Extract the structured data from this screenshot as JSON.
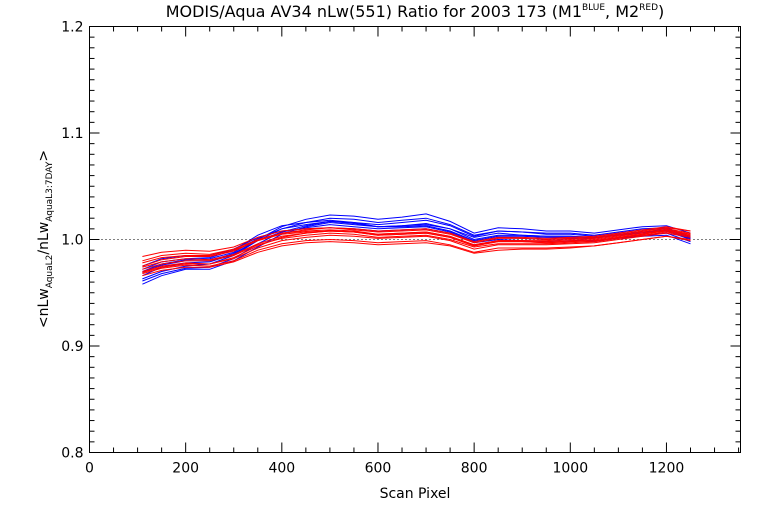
{
  "chart_data": {
    "type": "line",
    "title": {
      "main": "MODIS/Aqua AV34 nLw(551) Ratio for 2003 173 (M1",
      "sup1": "BLUE",
      "mid": ", M2",
      "sup2": "RED",
      "end": ")"
    },
    "xlabel": "Scan Pixel",
    "ylabel": {
      "open": "<nLw",
      "sub1": "AquaL2",
      "slash": "/nLw",
      "sub2": "AquaL3:7DAY",
      "close": ">"
    },
    "xlim": [
      0,
      1354
    ],
    "ylim": [
      0.8,
      1.2
    ],
    "xticks": [
      0,
      200,
      400,
      600,
      800,
      1000,
      1200
    ],
    "xtick_labels": [
      "0",
      "200",
      "400",
      "600",
      "800",
      "1000",
      "1200"
    ],
    "yticks": [
      0.8,
      0.9,
      1.0,
      1.1,
      1.2
    ],
    "ytick_labels": [
      "0.8",
      "0.9",
      "1.0",
      "1.1",
      "1.2"
    ],
    "reference_line": 1.0,
    "grid": false,
    "colors": {
      "M1": "#0000ff",
      "M2": "#ff0000",
      "reference": "#000000"
    },
    "x": [
      110,
      150,
      200,
      250,
      300,
      350,
      400,
      450,
      500,
      550,
      600,
      650,
      700,
      750,
      800,
      850,
      900,
      950,
      1000,
      1050,
      1100,
      1150,
      1200,
      1250
    ],
    "series": [
      {
        "group": "M1",
        "values": [
          0.958,
          0.966,
          0.972,
          0.972,
          0.98,
          0.993,
          1.005,
          1.012,
          1.016,
          1.014,
          1.012,
          1.013,
          1.014,
          1.01,
          1.002,
          1.006,
          1.004,
          1.003,
          1.003,
          1.002,
          1.004,
          1.007,
          1.009,
          1.001
        ]
      },
      {
        "group": "M1",
        "values": [
          0.966,
          0.974,
          0.978,
          0.979,
          0.986,
          1.0,
          1.012,
          1.019,
          1.023,
          1.022,
          1.019,
          1.021,
          1.024,
          1.017,
          1.006,
          1.011,
          1.01,
          1.008,
          1.008,
          1.006,
          1.009,
          1.012,
          1.013,
          1.006
        ]
      },
      {
        "group": "M1",
        "values": [
          0.972,
          0.979,
          0.982,
          0.983,
          0.99,
          1.004,
          1.013,
          1.016,
          1.018,
          1.016,
          1.012,
          1.012,
          1.013,
          1.008,
          0.999,
          1.003,
          1.003,
          1.002,
          1.002,
          1.001,
          1.004,
          1.006,
          1.008,
          1.001
        ]
      },
      {
        "group": "M1",
        "values": [
          0.961,
          0.968,
          0.973,
          0.974,
          0.982,
          0.996,
          1.007,
          1.013,
          1.017,
          1.016,
          1.014,
          1.016,
          1.018,
          1.013,
          1.003,
          1.008,
          1.007,
          1.005,
          1.005,
          1.003,
          1.006,
          1.009,
          1.01,
          1.002
        ]
      },
      {
        "group": "M1",
        "values": [
          0.975,
          0.982,
          0.985,
          0.985,
          0.991,
          1.002,
          1.008,
          1.01,
          1.011,
          1.01,
          1.008,
          1.009,
          1.01,
          1.006,
          0.997,
          1.0,
          0.999,
          0.998,
          0.999,
          0.998,
          1.001,
          1.003,
          1.004,
          0.996
        ]
      },
      {
        "group": "M1",
        "values": [
          0.963,
          0.97,
          0.975,
          0.977,
          0.985,
          0.999,
          1.01,
          1.016,
          1.02,
          1.019,
          1.016,
          1.018,
          1.02,
          1.014,
          1.004,
          1.008,
          1.007,
          1.006,
          1.006,
          1.004,
          1.007,
          1.01,
          1.011,
          1.003
        ]
      },
      {
        "group": "M1",
        "values": [
          0.969,
          0.976,
          0.98,
          0.98,
          0.987,
          0.999,
          1.007,
          1.011,
          1.014,
          1.012,
          1.01,
          1.011,
          1.012,
          1.007,
          0.998,
          1.002,
          1.001,
          1.0,
          1.001,
          0.999,
          1.002,
          1.004,
          1.006,
          0.998
        ]
      },
      {
        "group": "M1",
        "values": [
          0.97,
          0.977,
          0.981,
          0.982,
          0.988,
          1.001,
          1.01,
          1.014,
          1.017,
          1.015,
          1.012,
          1.013,
          1.015,
          1.01,
          1.0,
          1.004,
          1.004,
          1.003,
          1.003,
          1.002,
          1.005,
          1.007,
          1.008,
          1.0
        ]
      },
      {
        "group": "M2",
        "values": [
          0.97,
          0.975,
          0.978,
          0.977,
          0.983,
          0.994,
          1.002,
          1.006,
          1.008,
          1.007,
          1.004,
          1.005,
          1.006,
          1.002,
          0.994,
          0.998,
          0.998,
          0.997,
          0.998,
          0.999,
          1.002,
          1.005,
          1.009,
          1.005
        ]
      },
      {
        "group": "M2",
        "values": [
          0.975,
          0.981,
          0.984,
          0.984,
          0.989,
          0.999,
          1.006,
          1.009,
          1.011,
          1.009,
          1.007,
          1.008,
          1.009,
          1.005,
          0.997,
          1.001,
          1.001,
          1.0,
          1.001,
          1.002,
          1.005,
          1.008,
          1.011,
          1.008
        ]
      },
      {
        "group": "M2",
        "values": [
          0.968,
          0.973,
          0.976,
          0.975,
          0.98,
          0.99,
          0.996,
          0.999,
          1.0,
          0.999,
          0.997,
          0.998,
          0.999,
          0.995,
          0.988,
          0.992,
          0.992,
          0.992,
          0.993,
          0.994,
          0.997,
          1.0,
          1.003,
          1.0
        ]
      },
      {
        "group": "M2",
        "values": [
          0.98,
          0.985,
          0.987,
          0.986,
          0.991,
          1.0,
          1.006,
          1.008,
          1.009,
          1.008,
          1.005,
          1.006,
          1.007,
          1.003,
          0.995,
          0.999,
          0.999,
          0.999,
          1.0,
          1.001,
          1.004,
          1.007,
          1.01,
          1.006
        ]
      },
      {
        "group": "M2",
        "values": [
          0.972,
          0.977,
          0.98,
          0.98,
          0.985,
          0.995,
          1.001,
          1.004,
          1.006,
          1.005,
          1.002,
          1.003,
          1.004,
          1.0,
          0.993,
          0.996,
          0.996,
          0.996,
          0.997,
          0.998,
          1.001,
          1.004,
          1.007,
          1.003
        ]
      },
      {
        "group": "M2",
        "values": [
          0.966,
          0.971,
          0.974,
          0.974,
          0.979,
          0.988,
          0.994,
          0.997,
          0.998,
          0.997,
          0.995,
          0.996,
          0.997,
          0.994,
          0.987,
          0.99,
          0.991,
          0.991,
          0.992,
          0.994,
          0.997,
          1.0,
          1.003,
          0.999
        ]
      },
      {
        "group": "M2",
        "values": [
          0.984,
          0.988,
          0.99,
          0.989,
          0.993,
          1.002,
          1.008,
          1.01,
          1.011,
          1.01,
          1.008,
          1.009,
          1.01,
          1.006,
          0.998,
          1.002,
          1.002,
          1.001,
          1.002,
          1.003,
          1.006,
          1.009,
          1.012,
          1.008
        ]
      },
      {
        "group": "M2",
        "values": [
          0.974,
          0.979,
          0.982,
          0.981,
          0.986,
          0.996,
          1.003,
          1.006,
          1.008,
          1.007,
          1.005,
          1.006,
          1.007,
          1.003,
          0.995,
          0.999,
          0.999,
          0.998,
          0.999,
          1.0,
          1.003,
          1.006,
          1.009,
          1.005
        ]
      },
      {
        "group": "M2",
        "values": [
          0.978,
          0.983,
          0.985,
          0.985,
          0.99,
          0.999,
          1.005,
          1.007,
          1.008,
          1.007,
          1.004,
          1.005,
          1.006,
          1.002,
          0.994,
          0.998,
          0.998,
          0.997,
          0.998,
          0.999,
          1.002,
          1.005,
          1.008,
          1.004
        ]
      },
      {
        "group": "M2",
        "values": [
          0.969,
          0.974,
          0.977,
          0.977,
          0.982,
          0.992,
          0.999,
          1.002,
          1.004,
          1.003,
          1.001,
          1.002,
          1.003,
          0.999,
          0.991,
          0.995,
          0.995,
          0.995,
          0.996,
          0.997,
          1.0,
          1.003,
          1.006,
          1.002
        ]
      }
    ]
  }
}
